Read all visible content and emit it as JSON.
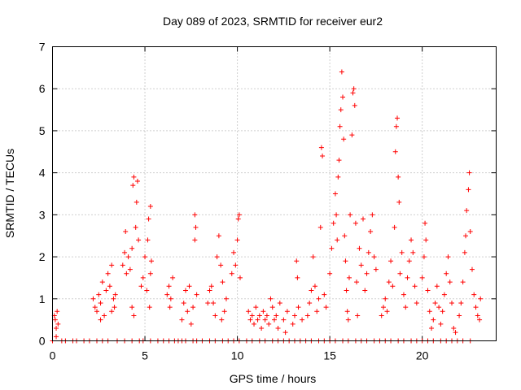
{
  "chart_data": {
    "type": "scatter",
    "title": "Day 089 of 2023, SRMTID for receiver eur2",
    "xlabel": "GPS time / hours",
    "ylabel": "SRMTID / TECUs",
    "xlim": [
      0,
      24
    ],
    "ylim": [
      0,
      7
    ],
    "xticks": [
      0,
      5,
      10,
      15,
      20
    ],
    "yticks": [
      0,
      1,
      2,
      3,
      4,
      5,
      6,
      7
    ],
    "marker": "plus",
    "series_color": "#ff0000",
    "grid": true,
    "series": [
      {
        "name": "SRMTID",
        "points": [
          [
            0.1,
            0.6
          ],
          [
            0.15,
            0.5
          ],
          [
            0.2,
            0.3
          ],
          [
            0.25,
            0.7
          ],
          [
            0.3,
            0.4
          ],
          [
            0.2,
            0.1
          ],
          [
            2.2,
            1.0
          ],
          [
            2.3,
            0.8
          ],
          [
            2.4,
            0.7
          ],
          [
            2.5,
            1.1
          ],
          [
            2.6,
            0.9
          ],
          [
            2.7,
            1.4
          ],
          [
            2.8,
            0.6
          ],
          [
            2.6,
            0.5
          ],
          [
            2.9,
            1.2
          ],
          [
            3.0,
            1.6
          ],
          [
            3.1,
            1.3
          ],
          [
            3.2,
            1.8
          ],
          [
            3.3,
            1.0
          ],
          [
            3.35,
            0.8
          ],
          [
            3.4,
            1.1
          ],
          [
            3.2,
            0.7
          ],
          [
            3.8,
            1.8
          ],
          [
            3.9,
            2.1
          ],
          [
            3.95,
            2.6
          ],
          [
            4.0,
            1.6
          ],
          [
            4.1,
            2.0
          ],
          [
            4.2,
            1.7
          ],
          [
            4.3,
            2.2
          ],
          [
            4.35,
            3.7
          ],
          [
            4.4,
            3.9
          ],
          [
            4.5,
            2.7
          ],
          [
            4.55,
            3.3
          ],
          [
            4.6,
            3.8
          ],
          [
            4.65,
            2.4
          ],
          [
            4.3,
            0.8
          ],
          [
            4.4,
            0.6
          ],
          [
            4.8,
            1.3
          ],
          [
            4.9,
            1.5
          ],
          [
            5.0,
            2.0
          ],
          [
            5.1,
            1.2
          ],
          [
            5.15,
            2.4
          ],
          [
            5.2,
            2.9
          ],
          [
            5.3,
            3.2
          ],
          [
            5.35,
            1.9
          ],
          [
            5.25,
            0.8
          ],
          [
            5.3,
            1.6
          ],
          [
            6.2,
            1.1
          ],
          [
            6.3,
            1.3
          ],
          [
            6.4,
            1.0
          ],
          [
            6.5,
            1.5
          ],
          [
            6.35,
            0.8
          ],
          [
            7.0,
            0.5
          ],
          [
            7.1,
            0.9
          ],
          [
            7.2,
            1.2
          ],
          [
            7.3,
            0.7
          ],
          [
            7.4,
            1.3
          ],
          [
            7.5,
            0.4
          ],
          [
            7.6,
            0.8
          ],
          [
            7.7,
            2.4
          ],
          [
            7.75,
            2.7
          ],
          [
            7.7,
            3.0
          ],
          [
            7.8,
            1.1
          ],
          [
            8.4,
            0.9
          ],
          [
            8.5,
            1.2
          ],
          [
            8.6,
            1.3
          ],
          [
            8.7,
            0.9
          ],
          [
            8.8,
            0.6
          ],
          [
            8.9,
            2.0
          ],
          [
            9.0,
            2.5
          ],
          [
            9.1,
            1.8
          ],
          [
            9.2,
            1.4
          ],
          [
            9.3,
            0.7
          ],
          [
            9.4,
            1.0
          ],
          [
            9.15,
            0.5
          ],
          [
            9.7,
            1.6
          ],
          [
            9.8,
            2.1
          ],
          [
            9.9,
            1.8
          ],
          [
            10.0,
            2.4
          ],
          [
            10.05,
            2.9
          ],
          [
            10.1,
            3.0
          ],
          [
            10.15,
            1.5
          ],
          [
            10.6,
            0.7
          ],
          [
            10.7,
            0.5
          ],
          [
            10.8,
            0.6
          ],
          [
            10.9,
            0.4
          ],
          [
            11.0,
            0.8
          ],
          [
            11.1,
            0.5
          ],
          [
            11.2,
            0.6
          ],
          [
            11.3,
            0.3
          ],
          [
            11.4,
            0.7
          ],
          [
            11.5,
            0.5
          ],
          [
            11.6,
            0.6
          ],
          [
            11.7,
            0.4
          ],
          [
            11.8,
            1.0
          ],
          [
            11.9,
            0.8
          ],
          [
            12.0,
            0.5
          ],
          [
            12.1,
            0.6
          ],
          [
            12.2,
            0.3
          ],
          [
            12.3,
            0.9
          ],
          [
            12.5,
            0.5
          ],
          [
            12.6,
            0.2
          ],
          [
            12.7,
            0.7
          ],
          [
            13.0,
            0.4
          ],
          [
            13.1,
            0.6
          ],
          [
            13.2,
            1.9
          ],
          [
            13.25,
            1.5
          ],
          [
            13.3,
            0.8
          ],
          [
            13.5,
            0.5
          ],
          [
            13.8,
            0.6
          ],
          [
            13.9,
            0.9
          ],
          [
            14.0,
            1.2
          ],
          [
            14.1,
            2.0
          ],
          [
            14.2,
            1.3
          ],
          [
            14.3,
            0.7
          ],
          [
            14.4,
            1.0
          ],
          [
            14.5,
            2.7
          ],
          [
            14.55,
            4.6
          ],
          [
            14.6,
            4.4
          ],
          [
            14.7,
            1.1
          ],
          [
            14.8,
            0.8
          ],
          [
            15.0,
            1.6
          ],
          [
            15.1,
            2.2
          ],
          [
            15.2,
            2.8
          ],
          [
            15.3,
            3.5
          ],
          [
            15.35,
            3.0
          ],
          [
            15.4,
            2.4
          ],
          [
            15.45,
            3.9
          ],
          [
            15.5,
            4.3
          ],
          [
            15.55,
            5.1
          ],
          [
            15.6,
            5.5
          ],
          [
            15.65,
            6.4
          ],
          [
            15.7,
            5.8
          ],
          [
            15.75,
            4.8
          ],
          [
            15.8,
            2.5
          ],
          [
            15.85,
            1.9
          ],
          [
            15.9,
            1.2
          ],
          [
            15.95,
            0.7
          ],
          [
            16.0,
            0.5
          ],
          [
            16.05,
            1.5
          ],
          [
            16.1,
            3.0
          ],
          [
            16.2,
            4.9
          ],
          [
            16.25,
            5.9
          ],
          [
            16.3,
            6.0
          ],
          [
            16.35,
            5.6
          ],
          [
            16.4,
            2.8
          ],
          [
            16.45,
            1.4
          ],
          [
            16.5,
            0.6
          ],
          [
            16.6,
            2.2
          ],
          [
            16.7,
            1.8
          ],
          [
            16.8,
            2.9
          ],
          [
            16.9,
            1.2
          ],
          [
            17.0,
            1.6
          ],
          [
            17.1,
            2.1
          ],
          [
            17.2,
            2.6
          ],
          [
            17.3,
            3.0
          ],
          [
            17.4,
            2.0
          ],
          [
            17.5,
            1.7
          ],
          [
            17.8,
            0.6
          ],
          [
            17.9,
            0.8
          ],
          [
            18.0,
            1.0
          ],
          [
            18.1,
            0.7
          ],
          [
            18.2,
            1.4
          ],
          [
            18.3,
            1.9
          ],
          [
            18.4,
            1.3
          ],
          [
            18.5,
            2.7
          ],
          [
            18.55,
            4.5
          ],
          [
            18.6,
            5.1
          ],
          [
            18.65,
            5.3
          ],
          [
            18.7,
            3.9
          ],
          [
            18.75,
            3.3
          ],
          [
            18.8,
            1.6
          ],
          [
            18.9,
            2.1
          ],
          [
            19.0,
            1.1
          ],
          [
            19.1,
            0.8
          ],
          [
            19.2,
            1.5
          ],
          [
            19.3,
            1.9
          ],
          [
            19.4,
            2.4
          ],
          [
            19.5,
            2.1
          ],
          [
            19.6,
            1.3
          ],
          [
            19.7,
            0.9
          ],
          [
            20.0,
            1.5
          ],
          [
            20.1,
            2.0
          ],
          [
            20.15,
            2.8
          ],
          [
            20.2,
            2.4
          ],
          [
            20.3,
            1.2
          ],
          [
            20.4,
            0.7
          ],
          [
            20.5,
            0.3
          ],
          [
            20.6,
            0.5
          ],
          [
            20.7,
            0.9
          ],
          [
            20.8,
            1.3
          ],
          [
            20.9,
            0.8
          ],
          [
            21.0,
            0.4
          ],
          [
            21.1,
            0.7
          ],
          [
            21.2,
            1.1
          ],
          [
            21.3,
            1.6
          ],
          [
            21.4,
            2.0
          ],
          [
            21.5,
            1.4
          ],
          [
            21.6,
            0.9
          ],
          [
            21.7,
            0.3
          ],
          [
            21.8,
            0.2
          ],
          [
            22.0,
            0.6
          ],
          [
            22.1,
            0.9
          ],
          [
            22.2,
            1.4
          ],
          [
            22.3,
            2.1
          ],
          [
            22.35,
            2.5
          ],
          [
            22.4,
            3.1
          ],
          [
            22.5,
            3.6
          ],
          [
            22.55,
            4.0
          ],
          [
            22.6,
            2.6
          ],
          [
            22.7,
            1.7
          ],
          [
            22.8,
            1.1
          ],
          [
            22.9,
            0.8
          ],
          [
            23.0,
            0.6
          ],
          [
            23.1,
            0.5
          ],
          [
            23.15,
            1.0
          ]
        ],
        "zero_values_at": [
          0.0,
          0.5,
          0.7,
          1.1,
          1.3,
          1.7,
          2.0,
          2.4,
          2.7,
          3.0,
          3.5,
          3.9,
          4.3,
          4.7,
          4.9,
          5.3,
          5.7,
          6.0,
          6.3,
          6.6,
          6.8,
          7.0,
          7.2,
          7.6,
          7.8,
          8.1,
          8.5,
          8.8,
          9.2,
          9.5,
          9.8,
          10.1,
          10.5,
          10.8,
          11.2,
          11.5,
          11.9,
          12.2,
          12.5,
          12.8,
          13.1,
          13.4,
          13.7,
          14.0,
          14.4,
          14.7,
          15.0,
          15.3,
          15.7,
          16.0,
          16.4,
          16.7,
          17.0,
          17.4,
          17.7,
          18.0,
          18.3,
          18.7,
          19.0,
          19.4,
          19.7,
          20.0,
          20.3,
          20.6,
          21.0,
          21.3,
          21.6,
          21.9,
          22.2,
          22.6
        ]
      }
    ]
  }
}
